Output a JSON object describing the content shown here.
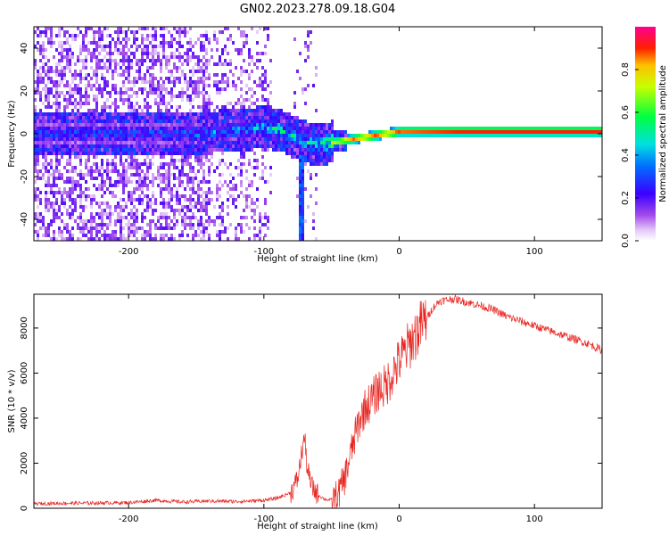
{
  "figure": {
    "title": "GN02.2023.278.09.18.G04"
  },
  "chart_data": [
    {
      "type": "heatmap",
      "xlabel": "Height of straight line (km)",
      "ylabel": "Frequency (Hz)",
      "xlim": [
        -270,
        150
      ],
      "ylim": [
        -50,
        50
      ],
      "x_ticks": [
        -200,
        -100,
        0,
        100
      ],
      "y_ticks": [
        -40,
        -20,
        0,
        20,
        40
      ],
      "colorbar": {
        "label": "Normalized spectral amplitude",
        "range": [
          0,
          1
        ],
        "ticks": [
          0.0,
          0.2,
          0.4,
          0.6,
          0.8
        ],
        "colors": [
          "#ffffff",
          "#d9b8f5",
          "#8a2be2",
          "#3300ff",
          "#00ccff",
          "#00ff66",
          "#ffff00",
          "#ff0000",
          "#ff00aa"
        ]
      },
      "ridge": {
        "x": [
          -270,
          -200,
          -150,
          -100,
          -90,
          -80,
          -70,
          -60,
          -50,
          -40,
          -30,
          -20,
          -10,
          0,
          50,
          100,
          150
        ],
        "frequency": [
          0,
          0,
          0,
          3,
          2,
          -1,
          -4,
          -5,
          -4,
          -3,
          -2,
          -1,
          0,
          1,
          1,
          1,
          1
        ],
        "amplitude": [
          0.35,
          0.35,
          0.4,
          0.5,
          0.55,
          0.55,
          0.55,
          0.6,
          0.75,
          0.85,
          0.9,
          0.9,
          0.9,
          0.9,
          0.95,
          0.95,
          0.95
        ]
      }
    },
    {
      "type": "line",
      "xlabel": "Height of straight line (km)",
      "ylabel": "SNR (10 * v/v)",
      "xlim": [
        -270,
        150
      ],
      "ylim": [
        0,
        9500
      ],
      "x_ticks": [
        -200,
        -100,
        0,
        100
      ],
      "y_ticks": [
        0,
        2000,
        4000,
        6000,
        8000
      ],
      "series": [
        {
          "color": "#e8231e",
          "x": [
            -270,
            -250,
            -230,
            -200,
            -180,
            -160,
            -140,
            -120,
            -100,
            -90,
            -80,
            -75,
            -70,
            -68,
            -65,
            -60,
            -55,
            -50,
            -45,
            -40,
            -35,
            -30,
            -25,
            -20,
            -15,
            -10,
            -5,
            0,
            5,
            10,
            15,
            20,
            25,
            30,
            35,
            40,
            50,
            60,
            70,
            80,
            90,
            100,
            110,
            120,
            130,
            140,
            150
          ],
          "y": [
            200,
            220,
            230,
            250,
            350,
            280,
            320,
            300,
            350,
            450,
            700,
            1300,
            3200,
            1800,
            1000,
            600,
            400,
            350,
            600,
            1400,
            2600,
            3800,
            4500,
            4800,
            5300,
            5400,
            6000,
            6500,
            7000,
            7500,
            8000,
            8400,
            8900,
            9200,
            9250,
            9300,
            9150,
            9000,
            8800,
            8500,
            8300,
            8100,
            7900,
            7700,
            7500,
            7300,
            7000
          ]
        }
      ]
    }
  ]
}
